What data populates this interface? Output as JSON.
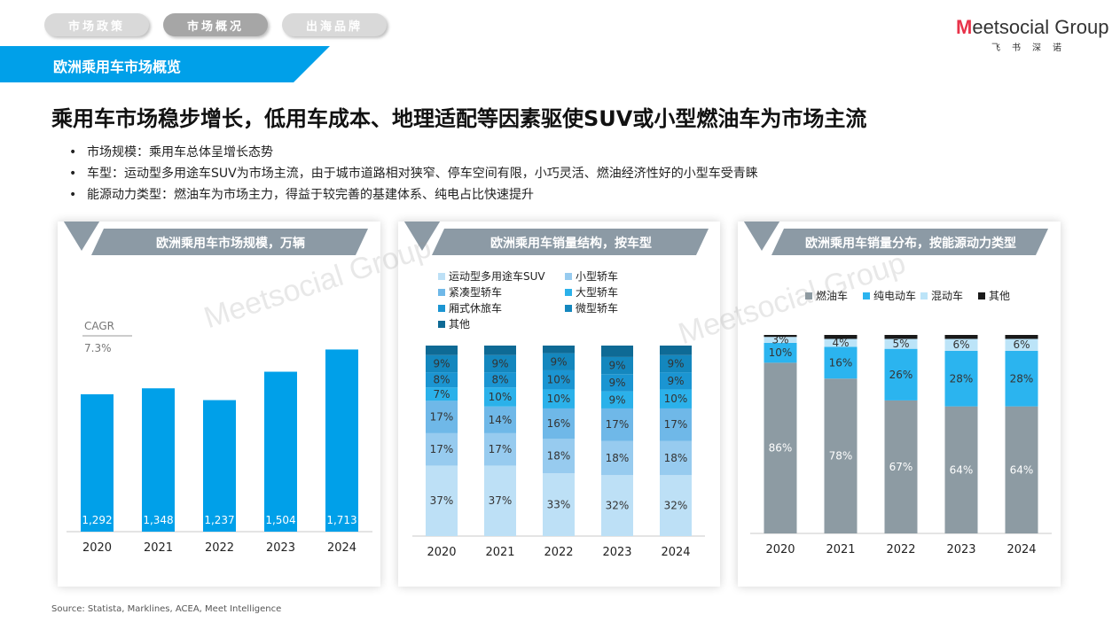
{
  "nav_tabs": [
    {
      "label": "市场政策",
      "active": false
    },
    {
      "label": "市场概况",
      "active": true
    },
    {
      "label": "出海品牌",
      "active": false
    }
  ],
  "logo": {
    "main_m": "M",
    "main_rest": "eetsocial",
    "main_group": "Group",
    "sub": "飞书深诺"
  },
  "section_banner": "欧洲乘用车市场概览",
  "headline": "乘用车市场稳步增长，低用车成本、地理适配等因素驱使SUV或小型燃油车为市场主流",
  "bullets": [
    "市场规模：乘用车总体呈增长态势",
    "车型：运动型多用途车SUV为市场主流，由于城市道路相对狭窄、停车空间有限，小巧灵活、燃油经济性好的小型车受青睐",
    "能源动力类型：燃油车为市场主力，得益于较完善的基建体系、纯电占比快速提升"
  ],
  "colors": {
    "accent": "#00a0e9",
    "banner": "#00a0e9",
    "gray_title": "#8c9aa5",
    "tab_active": "#a6a6a6",
    "tab_inactive": "#d9d9d9"
  },
  "chart_data": [
    {
      "type": "bar",
      "title": "欧洲乘用车市场规模，万辆",
      "categories": [
        "2020",
        "2021",
        "2022",
        "2023",
        "2024"
      ],
      "values": [
        1292,
        1348,
        1237,
        1504,
        1713
      ],
      "value_labels": [
        "1,292",
        "1,348",
        "1,237",
        "1,504",
        "1,713"
      ],
      "annotation": {
        "label": "CAGR",
        "value": "7.3%"
      },
      "color": "#00a0e9",
      "ylim": [
        0,
        1850
      ],
      "grid": false
    },
    {
      "type": "bar",
      "stacked": true,
      "title": "欧洲乘用车销量结构，按车型",
      "categories": [
        "2020",
        "2021",
        "2022",
        "2023",
        "2024"
      ],
      "legend_position": "top",
      "ylim": [
        0,
        100
      ],
      "series": [
        {
          "name": "运动型多用途车SUV",
          "color": "#bde0f6",
          "values": [
            37,
            37,
            33,
            32,
            32
          ]
        },
        {
          "name": "小型轿车",
          "color": "#97cbef",
          "values": [
            17,
            17,
            18,
            18,
            18
          ]
        },
        {
          "name": "紧凑型轿车",
          "color": "#6fb8e8",
          "values": [
            17,
            14,
            16,
            17,
            17
          ]
        },
        {
          "name": "大型轿车",
          "color": "#2bb1ea",
          "values": [
            7,
            10,
            10,
            9,
            10
          ]
        },
        {
          "name": "厢式休旅车",
          "color": "#1b95d2",
          "values": [
            8,
            8,
            10,
            9,
            9
          ]
        },
        {
          "name": "微型轿车",
          "color": "#1487be",
          "values": [
            9,
            9,
            9,
            9,
            9
          ]
        },
        {
          "name": "其他",
          "color": "#0e6a95",
          "values": [
            5,
            5,
            4,
            6,
            5
          ]
        }
      ],
      "data_labels": [
        [
          "37%",
          "17%",
          "17%",
          "7%",
          "8%",
          "9%",
          ""
        ],
        [
          "37%",
          "17%",
          "14%",
          "10%",
          "8%",
          "9%",
          ""
        ],
        [
          "33%",
          "18%",
          "16%",
          "10%",
          "10%",
          "9%",
          ""
        ],
        [
          "32%",
          "18%",
          "17%",
          "9%",
          "9%",
          "9%",
          ""
        ],
        [
          "32%",
          "18%",
          "17%",
          "10%",
          "9%",
          "9%",
          ""
        ]
      ]
    },
    {
      "type": "bar",
      "stacked": true,
      "title": "欧洲乘用车销量分布，按能源动力类型",
      "categories": [
        "2020",
        "2021",
        "2022",
        "2023",
        "2024"
      ],
      "legend_position": "top",
      "ylim": [
        0,
        100
      ],
      "series": [
        {
          "name": "燃油车",
          "color": "#8d9ba3",
          "values": [
            86,
            78,
            67,
            64,
            64
          ]
        },
        {
          "name": "纯电动车",
          "color": "#2bb4ef",
          "values": [
            10,
            16,
            26,
            28,
            28
          ]
        },
        {
          "name": "混动车",
          "color": "#bce4f8",
          "values": [
            3,
            4,
            5,
            6,
            6
          ]
        },
        {
          "name": "其他",
          "color": "#1a1a1a",
          "values": [
            1,
            2,
            2,
            2,
            2
          ]
        }
      ],
      "data_labels": [
        [
          "86%",
          "10%",
          "3%",
          ""
        ],
        [
          "78%",
          "16%",
          "4%",
          ""
        ],
        [
          "67%",
          "26%",
          "5%",
          ""
        ],
        [
          "64%",
          "28%",
          "6%",
          ""
        ],
        [
          "64%",
          "28%",
          "6%",
          ""
        ]
      ]
    }
  ],
  "source": "Source: Statista, Marklines, ACEA, Meet Intelligence"
}
